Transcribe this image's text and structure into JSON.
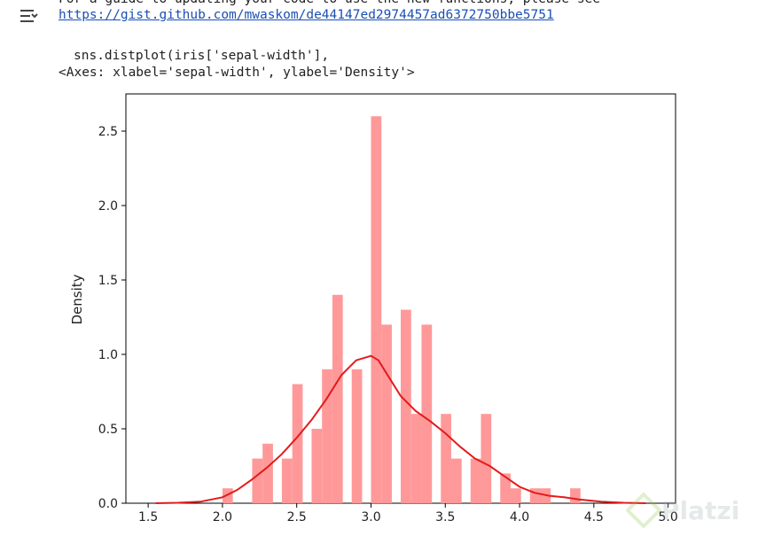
{
  "output": {
    "line0": "For a guide to updating your code to use the new functions, please see",
    "link": "https://gist.github.com/mwaskom/de44147ed2974457ad6372750bbe5751",
    "code": "sns.distplot(iris['sepal-width'],",
    "repr": "<Axes: xlabel='sepal-width', ylabel='Density'>"
  },
  "icons": {
    "output_toggle": "output-collapse-icon"
  },
  "watermark": "Platzi",
  "chart_data": {
    "type": "bar",
    "ylabel": "Density",
    "xlim": [
      1.35,
      5.05
    ],
    "ylim": [
      0,
      2.75
    ],
    "xticks": [
      "1.5",
      "2.0",
      "2.5",
      "3.0",
      "3.5",
      "4.0",
      "4.5",
      "5.0"
    ],
    "yticks": [
      "0.0",
      "0.5",
      "1.0",
      "1.5",
      "2.0",
      "2.5"
    ],
    "bar_color": "#ff9999",
    "kde_color": "#e31a1c",
    "bars": [
      {
        "x0": 2.0,
        "x1": 2.07,
        "y": 0.1
      },
      {
        "x0": 2.2,
        "x1": 2.27,
        "y": 0.3
      },
      {
        "x0": 2.27,
        "x1": 2.34,
        "y": 0.4
      },
      {
        "x0": 2.4,
        "x1": 2.47,
        "y": 0.3
      },
      {
        "x0": 2.47,
        "x1": 2.54,
        "y": 0.8
      },
      {
        "x0": 2.6,
        "x1": 2.67,
        "y": 0.5
      },
      {
        "x0": 2.67,
        "x1": 2.74,
        "y": 0.9
      },
      {
        "x0": 2.74,
        "x1": 2.81,
        "y": 1.4
      },
      {
        "x0": 2.87,
        "x1": 2.94,
        "y": 0.9
      },
      {
        "x0": 3.0,
        "x1": 3.07,
        "y": 2.6
      },
      {
        "x0": 3.07,
        "x1": 3.14,
        "y": 1.2
      },
      {
        "x0": 3.2,
        "x1": 3.27,
        "y": 1.3
      },
      {
        "x0": 3.27,
        "x1": 3.34,
        "y": 0.6
      },
      {
        "x0": 3.34,
        "x1": 3.41,
        "y": 1.2
      },
      {
        "x0": 3.47,
        "x1": 3.54,
        "y": 0.6
      },
      {
        "x0": 3.54,
        "x1": 3.61,
        "y": 0.3
      },
      {
        "x0": 3.67,
        "x1": 3.74,
        "y": 0.3
      },
      {
        "x0": 3.74,
        "x1": 3.81,
        "y": 0.6
      },
      {
        "x0": 3.87,
        "x1": 3.94,
        "y": 0.2
      },
      {
        "x0": 3.94,
        "x1": 4.01,
        "y": 0.1
      },
      {
        "x0": 4.07,
        "x1": 4.14,
        "y": 0.1
      },
      {
        "x0": 4.14,
        "x1": 4.21,
        "y": 0.1
      },
      {
        "x0": 4.34,
        "x1": 4.41,
        "y": 0.1
      }
    ],
    "kde": [
      [
        1.55,
        0.0
      ],
      [
        1.7,
        0.003
      ],
      [
        1.85,
        0.01
      ],
      [
        2.0,
        0.04
      ],
      [
        2.1,
        0.09
      ],
      [
        2.2,
        0.16
      ],
      [
        2.3,
        0.24
      ],
      [
        2.4,
        0.33
      ],
      [
        2.5,
        0.44
      ],
      [
        2.6,
        0.56
      ],
      [
        2.7,
        0.7
      ],
      [
        2.8,
        0.86
      ],
      [
        2.9,
        0.96
      ],
      [
        3.0,
        0.99
      ],
      [
        3.05,
        0.96
      ],
      [
        3.1,
        0.88
      ],
      [
        3.2,
        0.72
      ],
      [
        3.3,
        0.62
      ],
      [
        3.4,
        0.55
      ],
      [
        3.5,
        0.47
      ],
      [
        3.6,
        0.38
      ],
      [
        3.7,
        0.3
      ],
      [
        3.8,
        0.25
      ],
      [
        3.9,
        0.18
      ],
      [
        4.0,
        0.11
      ],
      [
        4.1,
        0.07
      ],
      [
        4.2,
        0.05
      ],
      [
        4.3,
        0.04
      ],
      [
        4.4,
        0.025
      ],
      [
        4.55,
        0.01
      ],
      [
        4.7,
        0.003
      ],
      [
        4.85,
        0.0
      ]
    ]
  }
}
